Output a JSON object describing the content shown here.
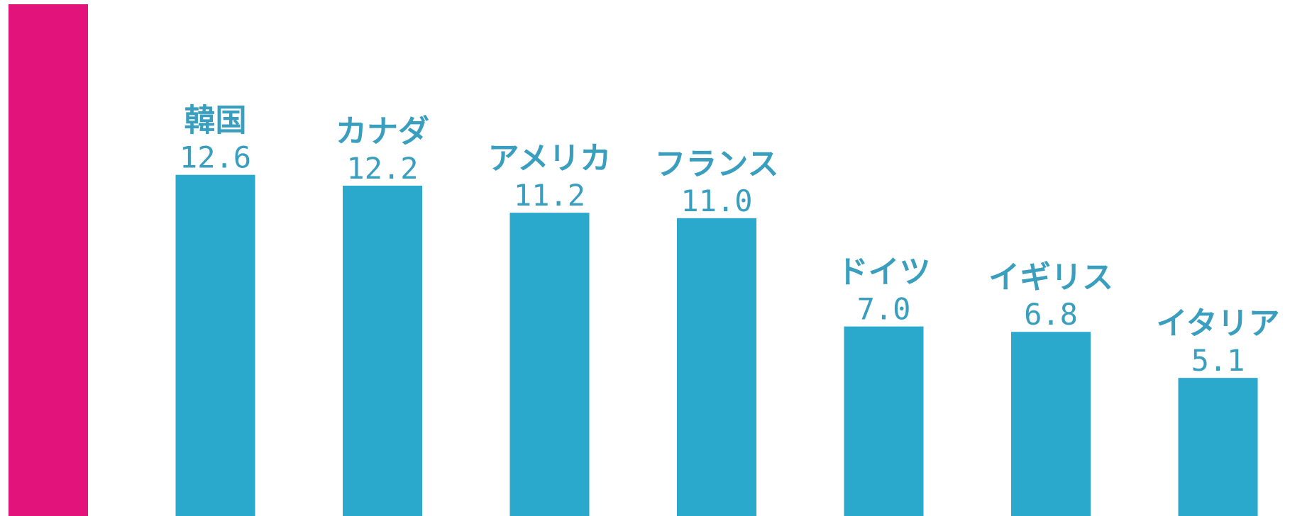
{
  "chart_data": {
    "type": "bar",
    "categories": [
      "韓国",
      "カナダ",
      "アメリカ",
      "フランス",
      "ドイツ",
      "イギリス",
      "イタリア"
    ],
    "values": [
      12.6,
      12.2,
      11.2,
      11.0,
      7.0,
      6.8,
      5.1
    ],
    "value_labels": [
      "12.6",
      "12.2",
      "11.2",
      "11.0",
      "7.0",
      "6.8",
      "5.1"
    ],
    "title": "",
    "xlabel": "",
    "ylabel": "",
    "ylim": [
      0,
      18.9
    ],
    "grid": false,
    "legend": "none",
    "note": "leftmost bar is cropped at the top of the image; its value and label are not visible",
    "cropped_bar": {
      "value": 18.9
    },
    "colors": {
      "bar": "#2aa9cc",
      "highlight_bar": "#e2137a",
      "label": "#3a9fbf"
    }
  }
}
